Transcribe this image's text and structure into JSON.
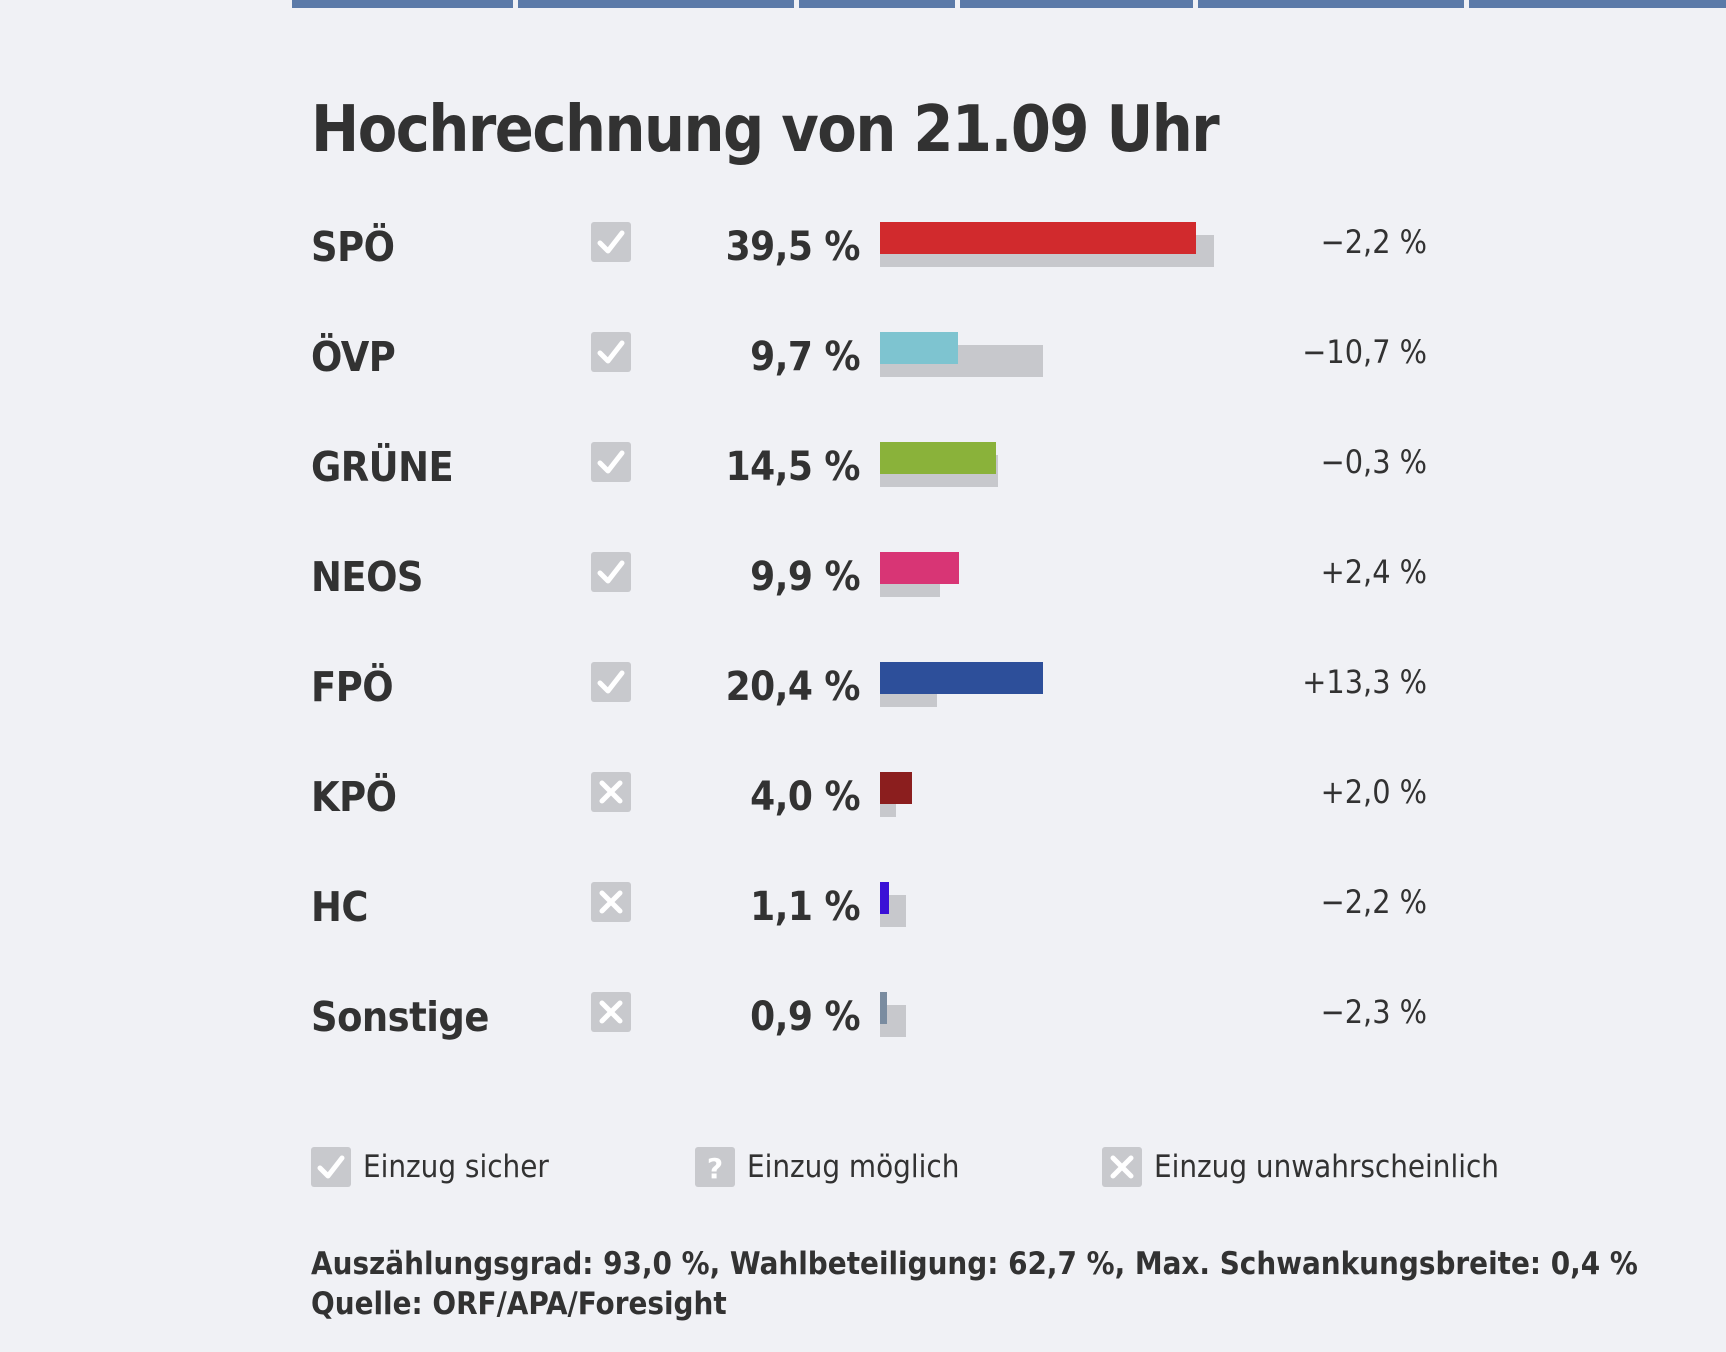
{
  "title": "Hochrechnung von 21.09 Uhr",
  "colors": {
    "SPÖ": "#d12a2d",
    "ÖVP": "#7ec4d0",
    "GRÜNE": "#8ab23a",
    "NEOS": "#d83575",
    "FPÖ": "#2d4f9a",
    "KPÖ": "#8b1e1e",
    "HC": "#3a10d6",
    "Sonstige": "#7a8ca0",
    "previous": "#c7c8cc",
    "status_box": "#c8c9cd"
  },
  "chart_data": {
    "type": "bar",
    "orientation": "horizontal",
    "title": "Hochrechnung von 21.09 Uhr",
    "categories": [
      "SPÖ",
      "ÖVP",
      "GRÜNE",
      "NEOS",
      "FPÖ",
      "KPÖ",
      "HC",
      "Sonstige"
    ],
    "series": [
      {
        "values": [
          39.5,
          9.7,
          14.5,
          9.9,
          20.4,
          4.0,
          1.1,
          0.9
        ]
      },
      {
        "values": [
          41.7,
          20.4,
          14.8,
          7.5,
          7.1,
          2.0,
          3.3,
          3.2
        ]
      }
    ],
    "value_labels": [
      "39,5 %",
      "9,7 %",
      "14,5 %",
      "9,9 %",
      "20,4 %",
      "4,0 %",
      "1,1 %",
      "0,9 %"
    ],
    "diff_labels": [
      "−2,2 %",
      "−10,7 %",
      "−0,3 %",
      "+2,4 %",
      "+13,3 %",
      "+2,0 %",
      "−2,2 %",
      "−2,3 %"
    ],
    "status": [
      "sicher",
      "sicher",
      "sicher",
      "sicher",
      "sicher",
      "unwahrscheinlich",
      "unwahrscheinlich",
      "unwahrscheinlich"
    ],
    "xlim": [
      0,
      50
    ]
  },
  "legend": {
    "sicher": "Einzug sicher",
    "moeglich": "Einzug möglich",
    "unwahrscheinlich": "Einzug unwahrscheinlich"
  },
  "footer": {
    "stats": "Auszählungsgrad: 93,0 %, Wahlbeteiligung: 62,7 %, Max. Schwankungsbreite: 0,4 %",
    "source": "Quelle: ORF/APA/Foresight"
  }
}
